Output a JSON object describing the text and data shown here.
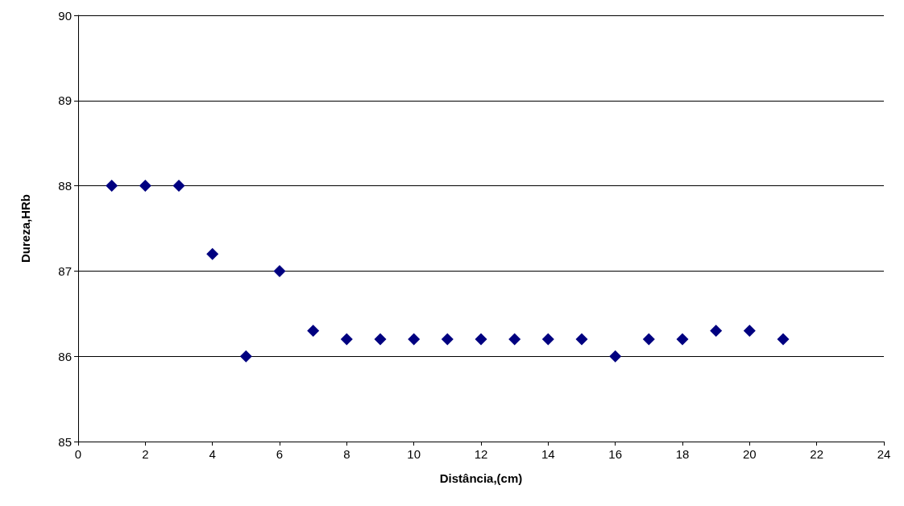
{
  "chart_data": {
    "type": "scatter",
    "xlabel": "Distância,(cm)",
    "ylabel": "Dureza,HRb",
    "x": [
      1,
      2,
      3,
      4,
      5,
      6,
      7,
      8,
      9,
      10,
      11,
      12,
      13,
      14,
      15,
      16,
      17,
      18,
      19,
      20,
      21
    ],
    "series": [
      {
        "color": "#000080",
        "values": [
          88,
          88,
          88,
          87.2,
          86,
          87,
          86.3,
          86.2,
          86.2,
          86.2,
          86.2,
          86.2,
          86.2,
          86.2,
          86.2,
          86,
          86.2,
          86.2,
          86.3,
          86.3,
          86.2
        ]
      }
    ],
    "xlim": [
      0,
      24
    ],
    "xticks": [
      0,
      2,
      4,
      6,
      8,
      10,
      12,
      14,
      16,
      18,
      20,
      22,
      24
    ],
    "ylim": [
      85,
      90
    ],
    "yticks": [
      85,
      86,
      87,
      88,
      89,
      90
    ],
    "grid": "y",
    "marker": "diamond"
  }
}
